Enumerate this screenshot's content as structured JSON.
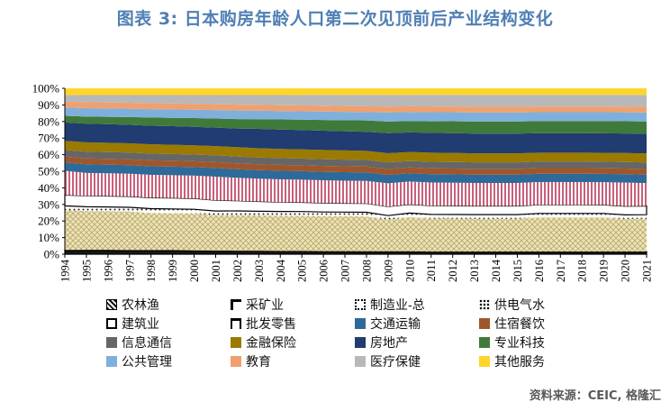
{
  "title": "图表 3:  日本购房年龄人口第二次见顶前后产业结构变化",
  "source": "资料来源：CEIC, 格隆汇",
  "chart_data": {
    "type": "area",
    "stacked": true,
    "x": [
      "1994",
      "1995",
      "1996",
      "1997",
      "1998",
      "1999",
      "2000",
      "2001",
      "2002",
      "2003",
      "2004",
      "2005",
      "2006",
      "2007",
      "2008",
      "2009",
      "2010",
      "2011",
      "2012",
      "2013",
      "2014",
      "2015",
      "2016",
      "2017",
      "2018",
      "2019",
      "2020",
      "2021"
    ],
    "yticks": [
      "0%",
      "10%",
      "20%",
      "30%",
      "40%",
      "50%",
      "60%",
      "70%",
      "80%",
      "90%",
      "100%"
    ],
    "ylim": [
      0,
      100
    ],
    "legend_position": "bottom",
    "series": [
      {
        "name": "农林渔",
        "color": "#1a1a1a",
        "values": [
          2,
          2,
          2,
          2,
          2,
          2,
          1.8,
          1.8,
          1.7,
          1.7,
          1.6,
          1.6,
          1.5,
          1.5,
          1.5,
          1.5,
          1.5,
          1.4,
          1.4,
          1.4,
          1.4,
          1.4,
          1.4,
          1.4,
          1.4,
          1.4,
          1.4,
          1.4
        ]
      },
      {
        "name": "采矿业",
        "color": "#444444",
        "values": [
          0.5,
          0.5,
          0.5,
          0.4,
          0.4,
          0.4,
          0.4,
          0.3,
          0.3,
          0.3,
          0.3,
          0.3,
          0.2,
          0.2,
          0.2,
          0.2,
          0.2,
          0.2,
          0.2,
          0.2,
          0.2,
          0.2,
          0.2,
          0.2,
          0.2,
          0.2,
          0.2,
          0.2
        ]
      },
      {
        "name": "制造业-总",
        "color": "#e8dca8",
        "values": [
          24,
          23,
          23,
          23,
          22,
          22,
          22,
          21,
          21,
          21,
          21,
          21,
          21,
          21,
          21,
          19,
          21,
          20,
          20,
          20,
          20,
          20,
          21,
          21,
          21,
          21,
          20,
          20
        ]
      },
      {
        "name": "供电气水",
        "color": "#ffffff",
        "values": [
          2.5,
          2.5,
          2.5,
          2.5,
          2.5,
          2.5,
          2.5,
          2.5,
          2.5,
          2.5,
          2.5,
          2.5,
          2.5,
          2.5,
          2.5,
          2.5,
          2.5,
          2.5,
          2.5,
          2.5,
          2.5,
          2.5,
          2.5,
          2.5,
          2.5,
          2.5,
          2.5,
          2.5
        ]
      },
      {
        "name": "建筑业",
        "color": "#ffffff",
        "values": [
          6.5,
          6.5,
          6.5,
          6.5,
          6.5,
          6.5,
          6.5,
          6.4,
          6,
          5.8,
          5.6,
          5.5,
          5.4,
          5.3,
          5.3,
          5.4,
          5.3,
          5.3,
          5.3,
          5.3,
          5.3,
          5.3,
          5.3,
          5.3,
          5.3,
          5.3,
          5.3,
          5.3
        ]
      },
      {
        "name": "批发零售",
        "color": "#d9a0b0",
        "values": [
          14.5,
          13.5,
          13.5,
          13.5,
          13.5,
          13.5,
          13.5,
          14,
          13.5,
          13.5,
          13.5,
          13.5,
          13.5,
          13.5,
          13.5,
          14,
          14,
          14,
          14,
          14,
          14,
          14,
          14,
          14,
          14,
          14,
          14.5,
          14
        ]
      },
      {
        "name": "交通运输",
        "color": "#2e6a99",
        "values": [
          5,
          5.1,
          5.1,
          5.1,
          5.1,
          5.1,
          5.1,
          5.1,
          5.1,
          5.1,
          5.1,
          5.1,
          5.1,
          5.1,
          5.1,
          5.1,
          5.1,
          5.1,
          5.1,
          5.1,
          5.1,
          5.1,
          5.1,
          5.1,
          5.1,
          5.1,
          5.1,
          5.1
        ]
      },
      {
        "name": "住宿餐饮",
        "color": "#a0562b",
        "values": [
          3.5,
          3.5,
          3.5,
          3.5,
          3.5,
          3.5,
          3.5,
          3.5,
          3.5,
          3.5,
          3.5,
          3.5,
          3.5,
          3.5,
          3.5,
          3.5,
          3.5,
          3.5,
          3.5,
          3.5,
          3.5,
          3.5,
          3.5,
          3.5,
          3.5,
          3.5,
          3.5,
          3.5
        ]
      },
      {
        "name": "信息通信",
        "color": "#666666",
        "values": [
          4,
          4,
          4,
          4,
          4,
          4,
          4,
          4,
          4,
          4,
          4,
          4,
          4,
          4,
          4,
          4,
          4,
          4,
          4,
          4,
          4,
          4,
          4,
          4,
          4,
          4,
          4,
          4
        ]
      },
      {
        "name": "金融保险",
        "color": "#9a7a00",
        "values": [
          5.5,
          5.5,
          5.5,
          5.5,
          5.5,
          5.5,
          5.5,
          5.5,
          5.5,
          5.5,
          5.5,
          5.5,
          5.5,
          5.5,
          5.5,
          5.5,
          5.5,
          5.5,
          5.5,
          5.5,
          5.5,
          5.5,
          5.5,
          5.5,
          5.5,
          5.5,
          5.5,
          5.5
        ]
      },
      {
        "name": "房地产",
        "color": "#203c70",
        "values": [
          11,
          11,
          11,
          11,
          11,
          11,
          11,
          11,
          11,
          11.5,
          11.5,
          11.5,
          11.5,
          11.5,
          11.5,
          12,
          12,
          12,
          12,
          12,
          12,
          12,
          12,
          12,
          12,
          12,
          12,
          12
        ]
      },
      {
        "name": "专业科技",
        "color": "#3f7a3a",
        "values": [
          4,
          4.2,
          4.4,
          4.6,
          4.8,
          5,
          5.2,
          5.4,
          5.6,
          5.8,
          6,
          6.2,
          6.4,
          6.6,
          6.8,
          7,
          7,
          7,
          7.2,
          7.4,
          7.4,
          7.4,
          7.4,
          7.4,
          7.4,
          7.5,
          7.5,
          7.5
        ]
      },
      {
        "name": "公共管理",
        "color": "#7fb0dc",
        "values": [
          5,
          5,
          5,
          5,
          5,
          5,
          5,
          5,
          5,
          5,
          5,
          5,
          5,
          5,
          5,
          5.5,
          5.5,
          5.5,
          5.5,
          5.5,
          5.5,
          5.5,
          5.5,
          5.5,
          5.5,
          5.5,
          5.5,
          5.5
        ]
      },
      {
        "name": "教育",
        "color": "#f0a070",
        "values": [
          3.5,
          3.5,
          3.5,
          3.5,
          3.5,
          3.5,
          3.5,
          3.5,
          3.5,
          3.5,
          3.5,
          3.5,
          3.5,
          3.5,
          3.5,
          3.5,
          3.5,
          3.5,
          3.5,
          3.5,
          3.5,
          3.5,
          3.5,
          3.5,
          3.5,
          3.5,
          3.5,
          3.5
        ]
      },
      {
        "name": "医疗保健",
        "color": "#b8b8b8",
        "values": [
          4,
          4.2,
          4.4,
          4.6,
          4.8,
          5,
          5.2,
          5.4,
          5.6,
          5.8,
          6,
          6.2,
          6.4,
          6.6,
          6.8,
          7,
          7,
          7,
          7,
          7.2,
          7.2,
          7.2,
          7.2,
          7.2,
          7.2,
          7.2,
          7.2,
          7.2
        ]
      },
      {
        "name": "其他服务",
        "color": "#ffd52a",
        "values": [
          4,
          4,
          4,
          4,
          4,
          4,
          4,
          4,
          4,
          4,
          4,
          4,
          4,
          4,
          4,
          4,
          4,
          4,
          4,
          4,
          4,
          4,
          4,
          4,
          4,
          4,
          4,
          4
        ]
      }
    ]
  }
}
